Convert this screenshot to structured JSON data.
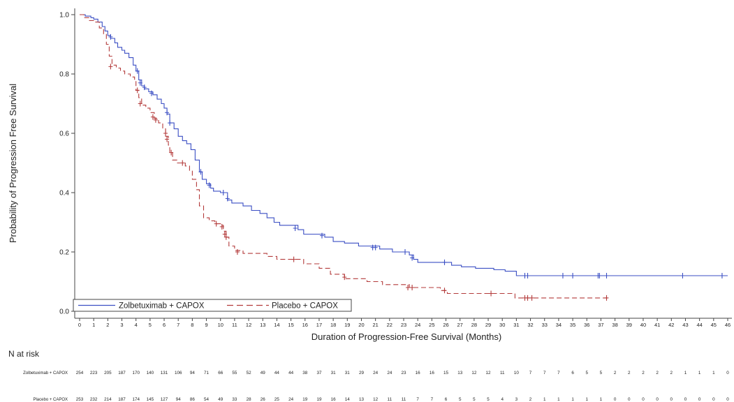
{
  "chart_data": {
    "type": "line",
    "xlabel": "Duration of Progression-Free Survival (Months)",
    "ylabel": "Probability of Progression Free Survival",
    "xlim": [
      0,
      46
    ],
    "ylim": [
      0,
      1
    ],
    "x_ticks": [
      0,
      1,
      2,
      3,
      4,
      5,
      6,
      7,
      8,
      9,
      10,
      11,
      12,
      13,
      14,
      15,
      16,
      17,
      18,
      19,
      20,
      21,
      22,
      23,
      24,
      25,
      26,
      27,
      28,
      29,
      30,
      31,
      32,
      33,
      34,
      35,
      36,
      37,
      38,
      39,
      40,
      41,
      42,
      43,
      44,
      45,
      46
    ],
    "y_ticks": [
      "0.0",
      "0.2",
      "0.4",
      "0.6",
      "0.8",
      "1.0"
    ],
    "y_tick_values": [
      0,
      0.2,
      0.4,
      0.6,
      0.8,
      1.0
    ],
    "grid": false,
    "legend_placement": "bottom-left",
    "series": [
      {
        "name": "Zolbetuximab + CAPOX",
        "color": "#3b4fc4",
        "line_style": "solid",
        "steps": [
          [
            0,
            1.0
          ],
          [
            0.4,
            0.995
          ],
          [
            0.8,
            0.99
          ],
          [
            1.0,
            0.985
          ],
          [
            1.3,
            0.975
          ],
          [
            1.6,
            0.96
          ],
          [
            1.8,
            0.945
          ],
          [
            2.0,
            0.93
          ],
          [
            2.2,
            0.92
          ],
          [
            2.5,
            0.905
          ],
          [
            2.7,
            0.89
          ],
          [
            3.0,
            0.88
          ],
          [
            3.2,
            0.87
          ],
          [
            3.5,
            0.855
          ],
          [
            3.8,
            0.83
          ],
          [
            4.0,
            0.81
          ],
          [
            4.2,
            0.78
          ],
          [
            4.4,
            0.76
          ],
          [
            4.6,
            0.75
          ],
          [
            4.9,
            0.74
          ],
          [
            5.2,
            0.73
          ],
          [
            5.5,
            0.715
          ],
          [
            5.8,
            0.7
          ],
          [
            6.0,
            0.685
          ],
          [
            6.2,
            0.665
          ],
          [
            6.4,
            0.635
          ],
          [
            6.7,
            0.615
          ],
          [
            7.0,
            0.59
          ],
          [
            7.3,
            0.575
          ],
          [
            7.6,
            0.565
          ],
          [
            7.9,
            0.545
          ],
          [
            8.2,
            0.51
          ],
          [
            8.5,
            0.47
          ],
          [
            8.7,
            0.445
          ],
          [
            9.0,
            0.43
          ],
          [
            9.3,
            0.415
          ],
          [
            9.5,
            0.405
          ],
          [
            10.0,
            0.4
          ],
          [
            10.5,
            0.375
          ],
          [
            10.8,
            0.365
          ],
          [
            11.6,
            0.355
          ],
          [
            12.2,
            0.34
          ],
          [
            12.8,
            0.33
          ],
          [
            13.3,
            0.315
          ],
          [
            13.8,
            0.3
          ],
          [
            14.2,
            0.29
          ],
          [
            15.5,
            0.275
          ],
          [
            15.9,
            0.26
          ],
          [
            17.4,
            0.25
          ],
          [
            18.0,
            0.235
          ],
          [
            18.8,
            0.23
          ],
          [
            19.8,
            0.22
          ],
          [
            21.3,
            0.21
          ],
          [
            22.2,
            0.2
          ],
          [
            23.4,
            0.19
          ],
          [
            23.7,
            0.175
          ],
          [
            24.0,
            0.165
          ],
          [
            26.4,
            0.155
          ],
          [
            27.1,
            0.15
          ],
          [
            28.1,
            0.145
          ],
          [
            29.4,
            0.14
          ],
          [
            30.2,
            0.135
          ],
          [
            31.0,
            0.12
          ],
          [
            35.0,
            0.12
          ],
          [
            46.0,
            0.12
          ]
        ],
        "censor_points": [
          [
            2.2,
            0.925
          ],
          [
            4.1,
            0.81
          ],
          [
            4.3,
            0.77
          ],
          [
            4.6,
            0.755
          ],
          [
            5.1,
            0.735
          ],
          [
            6.2,
            0.67
          ],
          [
            6.4,
            0.635
          ],
          [
            8.6,
            0.47
          ],
          [
            9.2,
            0.425
          ],
          [
            10.2,
            0.4
          ],
          [
            10.5,
            0.38
          ],
          [
            15.3,
            0.28
          ],
          [
            17.2,
            0.255
          ],
          [
            20.8,
            0.215
          ],
          [
            21.0,
            0.215
          ],
          [
            23.1,
            0.2
          ],
          [
            23.6,
            0.18
          ],
          [
            25.9,
            0.165
          ],
          [
            31.6,
            0.12
          ],
          [
            31.8,
            0.12
          ],
          [
            34.3,
            0.12
          ],
          [
            35.0,
            0.12
          ],
          [
            36.8,
            0.12
          ],
          [
            36.9,
            0.12
          ],
          [
            37.4,
            0.12
          ],
          [
            42.8,
            0.12
          ],
          [
            45.6,
            0.12
          ]
        ]
      },
      {
        "name": "Placebo + CAPOX",
        "color": "#b33a3a",
        "line_style": "dashed",
        "steps": [
          [
            0,
            1.0
          ],
          [
            0.3,
            0.99
          ],
          [
            0.7,
            0.98
          ],
          [
            1.0,
            0.975
          ],
          [
            1.4,
            0.955
          ],
          [
            1.7,
            0.935
          ],
          [
            1.9,
            0.9
          ],
          [
            2.1,
            0.86
          ],
          [
            2.3,
            0.83
          ],
          [
            2.6,
            0.82
          ],
          [
            2.9,
            0.81
          ],
          [
            3.2,
            0.8
          ],
          [
            3.6,
            0.79
          ],
          [
            3.9,
            0.78
          ],
          [
            4.0,
            0.745
          ],
          [
            4.2,
            0.72
          ],
          [
            4.4,
            0.695
          ],
          [
            4.7,
            0.685
          ],
          [
            5.0,
            0.67
          ],
          [
            5.3,
            0.65
          ],
          [
            5.6,
            0.635
          ],
          [
            5.9,
            0.615
          ],
          [
            6.1,
            0.59
          ],
          [
            6.3,
            0.56
          ],
          [
            6.4,
            0.535
          ],
          [
            6.6,
            0.51
          ],
          [
            6.9,
            0.5
          ],
          [
            7.5,
            0.49
          ],
          [
            7.8,
            0.475
          ],
          [
            8.0,
            0.445
          ],
          [
            8.3,
            0.41
          ],
          [
            8.5,
            0.355
          ],
          [
            8.8,
            0.315
          ],
          [
            9.2,
            0.305
          ],
          [
            9.6,
            0.295
          ],
          [
            10.0,
            0.29
          ],
          [
            10.2,
            0.27
          ],
          [
            10.4,
            0.25
          ],
          [
            10.6,
            0.22
          ],
          [
            11.0,
            0.205
          ],
          [
            11.6,
            0.195
          ],
          [
            13.3,
            0.185
          ],
          [
            14.0,
            0.175
          ],
          [
            15.9,
            0.16
          ],
          [
            17.0,
            0.145
          ],
          [
            17.8,
            0.125
          ],
          [
            18.8,
            0.11
          ],
          [
            20.4,
            0.1
          ],
          [
            21.5,
            0.09
          ],
          [
            23.4,
            0.08
          ],
          [
            25.6,
            0.07
          ],
          [
            26.1,
            0.06
          ],
          [
            29.0,
            0.06
          ],
          [
            30.9,
            0.045
          ],
          [
            37.5,
            0.045
          ]
        ],
        "censor_points": [
          [
            2.2,
            0.825
          ],
          [
            4.1,
            0.745
          ],
          [
            4.3,
            0.7
          ],
          [
            5.2,
            0.655
          ],
          [
            5.4,
            0.645
          ],
          [
            6.1,
            0.6
          ],
          [
            6.2,
            0.58
          ],
          [
            6.5,
            0.535
          ],
          [
            7.3,
            0.5
          ],
          [
            9.7,
            0.295
          ],
          [
            10.1,
            0.285
          ],
          [
            10.3,
            0.26
          ],
          [
            10.4,
            0.25
          ],
          [
            11.2,
            0.2
          ],
          [
            15.2,
            0.175
          ],
          [
            18.8,
            0.115
          ],
          [
            23.3,
            0.08
          ],
          [
            23.6,
            0.08
          ],
          [
            25.9,
            0.07
          ],
          [
            29.2,
            0.06
          ],
          [
            31.6,
            0.045
          ],
          [
            31.8,
            0.045
          ],
          [
            32.1,
            0.045
          ],
          [
            37.4,
            0.045
          ]
        ]
      }
    ],
    "legend": [
      "Zolbetuximab + CAPOX",
      "Placebo + CAPOX"
    ]
  },
  "risk_table": {
    "header": "N at risk",
    "rows": [
      {
        "name": "Zolbetuximab + CAPOX",
        "values": [
          254,
          223,
          205,
          187,
          170,
          140,
          131,
          106,
          94,
          71,
          66,
          55,
          52,
          49,
          44,
          44,
          38,
          37,
          31,
          31,
          29,
          24,
          24,
          23,
          16,
          16,
          15,
          13,
          12,
          12,
          11,
          10,
          7,
          7,
          7,
          6,
          5,
          5,
          2,
          2,
          2,
          2,
          2,
          1,
          1,
          1,
          0
        ]
      },
      {
        "name": "Placebo + CAPOX",
        "values": [
          253,
          232,
          214,
          187,
          174,
          145,
          127,
          94,
          86,
          54,
          49,
          33,
          28,
          26,
          25,
          24,
          19,
          19,
          16,
          14,
          13,
          12,
          11,
          11,
          7,
          7,
          6,
          5,
          5,
          5,
          4,
          3,
          2,
          1,
          1,
          1,
          1,
          1,
          0,
          0,
          0,
          0,
          0,
          0,
          0,
          0,
          0
        ]
      }
    ]
  }
}
